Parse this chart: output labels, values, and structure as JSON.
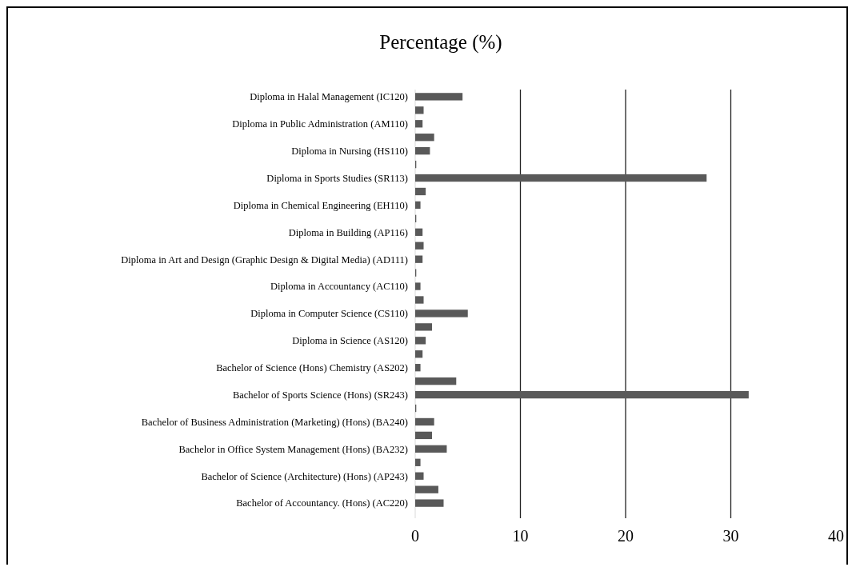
{
  "chart_data": {
    "type": "bar",
    "orientation": "horizontal",
    "title": "Percentage (%)",
    "categories": [
      "Diploma in Halal Management (IC120)",
      null,
      "Diploma in Public Administration (AM110)",
      null,
      "Diploma in Nursing (HS110)",
      null,
      "Diploma in Sports Studies (SR113)",
      null,
      "Diploma in Chemical Engineering (EH110)",
      null,
      "Diploma in Building (AP116)",
      null,
      "Diploma in Art and Design (Graphic Design & Digital Media) (AD111)",
      null,
      "Diploma in Accountancy (AC110)",
      null,
      "Diploma in Computer Science (CS110)",
      null,
      "Diploma in Science (AS120)",
      null,
      "Bachelor of Science (Hons) Chemistry (AS202)",
      null,
      "Bachelor of Sports Science (Hons) (SR243)",
      null,
      "Bachelor of Business Administration (Marketing) (Hons) (BA240)",
      null,
      "Bachelor in Office System Management (Hons) (BA232)",
      null,
      "Bachelor of Science (Architecture) (Hons) (AP243)",
      null,
      "Bachelor of Accountancy. (Hons) (AC220)"
    ],
    "values": [
      4.5,
      0.8,
      0.7,
      1.8,
      1.4,
      0.1,
      27.7,
      1.0,
      0.5,
      0.1,
      0.7,
      0.8,
      0.7,
      0.1,
      0.5,
      0.8,
      5.0,
      1.6,
      1.0,
      0.7,
      0.5,
      3.9,
      31.7,
      0.1,
      1.8,
      1.6,
      3.0,
      0.5,
      0.8,
      2.2,
      2.7
    ],
    "color": "#595959",
    "xlim": [
      0,
      40
    ],
    "xticks": [
      0,
      10,
      20,
      30,
      40
    ],
    "grid": "x"
  }
}
